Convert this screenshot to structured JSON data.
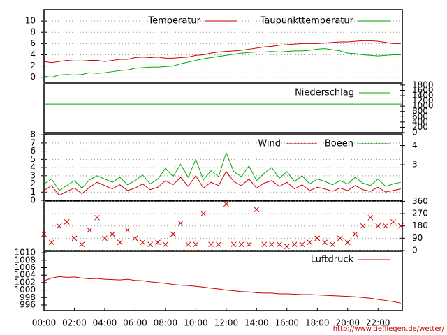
{
  "chart_data": [
    {
      "type": "line",
      "xlim": [
        0,
        23.6
      ],
      "ylim": [
        -0.9,
        12
      ],
      "yticks": [
        0,
        2,
        4,
        6,
        8,
        10
      ],
      "grid": true,
      "x": [
        0,
        0.5,
        1,
        1.5,
        2,
        2.5,
        3,
        3.5,
        4,
        4.5,
        5,
        5.5,
        6,
        6.5,
        7,
        7.5,
        8,
        8.5,
        9,
        9.5,
        10,
        10.5,
        11,
        11.5,
        12,
        12.5,
        13,
        13.5,
        14,
        14.5,
        15,
        15.5,
        16,
        16.5,
        17,
        17.5,
        18,
        18.5,
        19,
        19.5,
        20,
        20.5,
        21,
        21.5,
        22,
        22.5,
        23,
        23.5
      ],
      "series": [
        {
          "name": "Temperatur",
          "color": "#cc0000",
          "values": [
            2.8,
            2.6,
            2.8,
            3.0,
            2.9,
            2.9,
            3.0,
            3.0,
            2.8,
            3.0,
            3.2,
            3.2,
            3.5,
            3.6,
            3.5,
            3.6,
            3.4,
            3.4,
            3.5,
            3.6,
            3.9,
            4.0,
            4.3,
            4.5,
            4.6,
            4.7,
            4.8,
            5.0,
            5.2,
            5.4,
            5.5,
            5.7,
            5.8,
            5.9,
            6.0,
            6.0,
            6.0,
            6.1,
            6.2,
            6.3,
            6.3,
            6.4,
            6.5,
            6.5,
            6.4,
            6.2,
            6.0,
            6.0
          ]
        },
        {
          "name": "Taupunkttemperatur",
          "color": "#00aa00",
          "values": [
            0.2,
            0.0,
            0.4,
            0.5,
            0.4,
            0.5,
            0.8,
            0.7,
            0.8,
            1.0,
            1.2,
            1.3,
            1.6,
            1.7,
            1.8,
            1.8,
            1.9,
            2.0,
            2.4,
            2.7,
            3.0,
            3.3,
            3.5,
            3.7,
            3.9,
            4.1,
            4.3,
            4.4,
            4.5,
            4.5,
            4.6,
            4.5,
            4.6,
            4.7,
            4.7,
            4.8,
            5.0,
            5.1,
            4.9,
            4.7,
            4.3,
            4.2,
            4.0,
            3.9,
            3.8,
            3.9,
            4.0,
            4.0
          ]
        }
      ]
    },
    {
      "type": "line",
      "xlim": [
        0,
        23.6
      ],
      "ylim": [
        0,
        1850
      ],
      "yticks": [
        0,
        200,
        400,
        600,
        800,
        1000,
        1200,
        1400,
        1600,
        1800
      ],
      "grid": false,
      "x": [
        0,
        23.6
      ],
      "series": [
        {
          "name": "Niederschlag",
          "color": "#00aa00",
          "values": [
            1080,
            1080
          ]
        }
      ]
    },
    {
      "type": "line",
      "xlim": [
        0,
        23.6
      ],
      "ylim": [
        0,
        8.1
      ],
      "yticks": [
        0,
        1,
        2,
        3,
        4,
        5,
        6,
        7,
        8
      ],
      "grid": true,
      "y2scale": "beaufort",
      "y2ticks": [
        4,
        3
      ],
      "x": [
        0,
        0.5,
        1,
        1.5,
        2,
        2.5,
        3,
        3.5,
        4,
        4.5,
        5,
        5.5,
        6,
        6.5,
        7,
        7.5,
        8,
        8.5,
        9,
        9.5,
        10,
        10.5,
        11,
        11.5,
        12,
        12.5,
        13,
        13.5,
        14,
        14.5,
        15,
        15.5,
        16,
        16.5,
        17,
        17.5,
        18,
        18.5,
        19,
        19.5,
        20,
        20.5,
        21,
        21.5,
        22,
        22.5,
        23,
        23.5
      ],
      "series": [
        {
          "name": "Wind",
          "color": "#cc0000",
          "values": [
            1.2,
            1.8,
            0.6,
            1.1,
            1.5,
            0.8,
            1.6,
            2.2,
            1.8,
            1.4,
            1.9,
            1.2,
            1.5,
            2.0,
            1.3,
            1.6,
            2.4,
            1.9,
            2.8,
            1.7,
            3.0,
            1.5,
            2.2,
            1.8,
            3.5,
            2.3,
            1.8,
            2.6,
            1.5,
            2.1,
            2.4,
            1.7,
            2.2,
            1.4,
            1.9,
            1.2,
            1.6,
            1.4,
            1.1,
            1.5,
            1.2,
            1.8,
            1.3,
            1.1,
            1.6,
            1.0,
            1.2,
            1.4
          ]
        },
        {
          "name": "Boeen",
          "color": "#00aa00",
          "values": [
            2.0,
            2.6,
            1.2,
            1.8,
            2.4,
            1.5,
            2.5,
            3.0,
            2.6,
            2.2,
            2.8,
            1.9,
            2.4,
            3.1,
            2.0,
            2.6,
            3.9,
            2.9,
            4.4,
            2.8,
            5.0,
            2.5,
            3.6,
            2.9,
            5.8,
            3.5,
            2.9,
            4.2,
            2.4,
            3.3,
            4.0,
            2.7,
            3.5,
            2.3,
            3.0,
            2.0,
            2.6,
            2.3,
            1.9,
            2.4,
            2.0,
            2.8,
            2.1,
            1.8,
            2.6,
            1.7,
            2.0,
            2.2
          ]
        }
      ]
    },
    {
      "type": "scatter",
      "xlim": [
        0,
        23.6
      ],
      "ylim": [
        0,
        362
      ],
      "yticks": [
        0,
        90,
        180,
        270,
        360
      ],
      "grid": true,
      "x": [
        0,
        0.5,
        1,
        1.5,
        2,
        2.5,
        3,
        3.5,
        4,
        4.5,
        5,
        5.5,
        6,
        6.5,
        7,
        7.5,
        8,
        8.5,
        9,
        9.5,
        10,
        10.5,
        11,
        11.5,
        12,
        12.5,
        13,
        13.5,
        14,
        14.5,
        15,
        15.5,
        16,
        16.5,
        17,
        17.5,
        18,
        18.5,
        19,
        19.5,
        20,
        20.5,
        21,
        21.5,
        22,
        22.5,
        23,
        23.5
      ],
      "color": "#cc0000",
      "values": [
        120,
        60,
        180,
        210,
        90,
        45,
        150,
        240,
        90,
        120,
        60,
        150,
        90,
        60,
        45,
        60,
        45,
        120,
        200,
        45,
        45,
        270,
        45,
        45,
        340,
        45,
        45,
        45,
        300,
        45,
        45,
        45,
        30,
        45,
        45,
        60,
        90,
        60,
        45,
        90,
        60,
        120,
        180,
        240,
        180,
        180,
        210,
        180
      ]
    },
    {
      "type": "line",
      "xlim": [
        0,
        23.6
      ],
      "ylim": [
        994.5,
        1010.4
      ],
      "yticks": [
        996,
        998,
        1000,
        1002,
        1004,
        1006,
        1008,
        1010
      ],
      "grid": false,
      "xticks": [
        {
          "value": 0,
          "label": "00:00"
        },
        {
          "value": 2,
          "label": "02:00"
        },
        {
          "value": 4,
          "label": "04:00"
        },
        {
          "value": 6,
          "label": "06:00"
        },
        {
          "value": 8,
          "label": "08:00"
        },
        {
          "value": 10,
          "label": "10:00"
        },
        {
          "value": 12,
          "label": "12:00"
        },
        {
          "value": 14,
          "label": "14:00"
        },
        {
          "value": 16,
          "label": "16:00"
        },
        {
          "value": 18,
          "label": "18:00"
        },
        {
          "value": 20,
          "label": "20:00"
        },
        {
          "value": 22,
          "label": "22:00"
        }
      ],
      "x": [
        0,
        0.5,
        1,
        1.5,
        2,
        2.5,
        3,
        3.5,
        4,
        4.5,
        5,
        5.5,
        6,
        6.5,
        7,
        7.5,
        8,
        8.5,
        9,
        9.5,
        10,
        10.5,
        11,
        11.5,
        12,
        12.5,
        13,
        13.5,
        14,
        14.5,
        15,
        15.5,
        16,
        16.5,
        17,
        17.5,
        18,
        18.5,
        19,
        19.5,
        20,
        20.5,
        21,
        21.5,
        22,
        22.5,
        23,
        23.5
      ],
      "series": [
        {
          "name": "Luftdruck",
          "color": "#cc0000",
          "values": [
            1002.5,
            1003.2,
            1003.6,
            1003.4,
            1003.5,
            1003.2,
            1003.0,
            1003.1,
            1002.9,
            1002.8,
            1002.7,
            1002.9,
            1002.6,
            1002.5,
            1002.2,
            1002.0,
            1001.8,
            1001.5,
            1001.3,
            1001.2,
            1001.0,
            1000.8,
            1000.5,
            1000.3,
            1000.0,
            999.8,
            999.6,
            999.5,
            999.3,
            999.2,
            999.2,
            999.0,
            999.0,
            998.9,
            998.8,
            998.8,
            998.7,
            998.6,
            998.5,
            998.4,
            998.3,
            998.2,
            998.0,
            997.8,
            997.5,
            997.2,
            996.9,
            996.5
          ]
        }
      ]
    }
  ],
  "footer": "http://www.tiefliegen.de/wetter/"
}
